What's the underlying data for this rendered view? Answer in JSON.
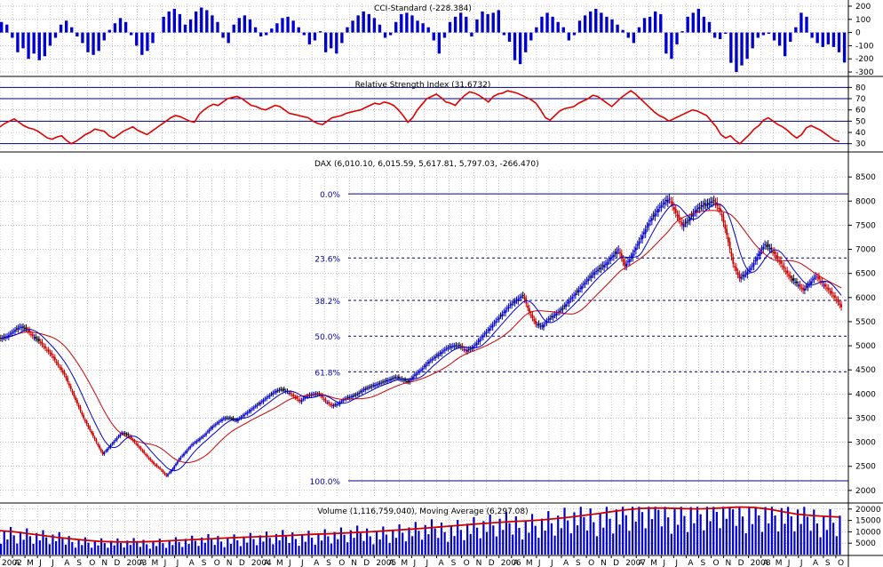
{
  "colors": {
    "price_up": "#0000cc",
    "price_down": "#cc0000",
    "ma_short": "#0000cc",
    "ma_long": "#cc0000",
    "indicator_line": "#e00000",
    "bars": "#0000cc",
    "grid": "#9a9a9a",
    "fib_line": "#000080"
  },
  "chart_data": [
    {
      "type": "bar",
      "panel": "cci",
      "title": "CCI-Standard (-228.384)",
      "y_ticks": [
        "200",
        "100",
        "0",
        "-100",
        "-200",
        "-300"
      ],
      "ylim": [
        -320,
        220
      ],
      "grid": true,
      "note_series": "approximate weekly CCI values",
      "values": [
        80,
        60,
        -40,
        -150,
        -120,
        -200,
        -160,
        -210,
        -180,
        -100,
        -40,
        60,
        90,
        40,
        -30,
        -80,
        -150,
        -170,
        -140,
        -60,
        20,
        70,
        110,
        80,
        -20,
        -100,
        -170,
        -140,
        -80,
        0,
        120,
        160,
        180,
        140,
        60,
        100,
        160,
        190,
        170,
        130,
        80,
        -40,
        -80,
        60,
        110,
        130,
        100,
        40,
        -30,
        -20,
        30,
        70,
        110,
        120,
        90,
        40,
        -20,
        -90,
        -60,
        10,
        -150,
        -120,
        -160,
        -80,
        40,
        90,
        130,
        160,
        140,
        110,
        60,
        -40,
        -20,
        80,
        140,
        150,
        130,
        90,
        70,
        40,
        -60,
        -160,
        -40,
        80,
        120,
        150,
        120,
        -30,
        100,
        160,
        140,
        150,
        170,
        -20,
        -70,
        -210,
        -240,
        -150,
        -60,
        40,
        120,
        150,
        120,
        80,
        40,
        -60,
        -20,
        90,
        130,
        160,
        180,
        150,
        120,
        100,
        60,
        20,
        -40,
        -80,
        40,
        110,
        120,
        160,
        140,
        -160,
        -200,
        -90,
        10,
        120,
        150,
        180,
        120,
        80,
        -40,
        -50,
        -10,
        -230,
        -300,
        -250,
        -200,
        -120,
        -40,
        -20,
        -10,
        -60,
        -100,
        -180,
        -70,
        40,
        150,
        120,
        -40,
        -80,
        -110,
        -90,
        -110,
        -150,
        -228
      ]
    },
    {
      "type": "line",
      "panel": "rsi",
      "title": "Relative Strength Index (31.6732)",
      "y_ticks": [
        "80",
        "70",
        "60",
        "50",
        "40",
        "30"
      ],
      "ylim": [
        25,
        85
      ],
      "hlines": [
        80,
        70,
        50,
        30
      ],
      "grid": true,
      "values": [
        45,
        48,
        50,
        52,
        49,
        46,
        44,
        43,
        41,
        38,
        35,
        34,
        36,
        37,
        33,
        30,
        32,
        35,
        38,
        40,
        43,
        42,
        41,
        37,
        35,
        38,
        41,
        43,
        45,
        42,
        40,
        38,
        41,
        44,
        47,
        50,
        53,
        55,
        54,
        52,
        50,
        49,
        56,
        60,
        63,
        65,
        64,
        67,
        70,
        71,
        72,
        70,
        67,
        64,
        63,
        61,
        60,
        62,
        64,
        63,
        60,
        57,
        56,
        55,
        54,
        53,
        50,
        48,
        47,
        50,
        53,
        54,
        55,
        57,
        58,
        59,
        60,
        62,
        64,
        66,
        65,
        67,
        66,
        64,
        60,
        55,
        49,
        53,
        60,
        65,
        70,
        72,
        74,
        71,
        67,
        66,
        64,
        69,
        73,
        76,
        75,
        73,
        70,
        67,
        72,
        74,
        75,
        77,
        76,
        75,
        73,
        71,
        69,
        66,
        60,
        53,
        51,
        55,
        59,
        61,
        62,
        63,
        66,
        68,
        70,
        73,
        72,
        69,
        66,
        63,
        67,
        71,
        74,
        77,
        74,
        70,
        66,
        62,
        58,
        55,
        53,
        50,
        52,
        54,
        56,
        58,
        60,
        59,
        57,
        55,
        50,
        45,
        38,
        35,
        37,
        33,
        30,
        34,
        38,
        43,
        46,
        51,
        53,
        50,
        47,
        45,
        42,
        38,
        35,
        38,
        44,
        46,
        44,
        42,
        39,
        36,
        33,
        32
      ]
    },
    {
      "type": "candlestick",
      "panel": "price",
      "title": "DAX (6,010.10, 6,015.59, 5,617.81, 5,797.03, -266.470)",
      "y_ticks": [
        "8500",
        "8000",
        "7500",
        "7000",
        "6500",
        "6000",
        "5500",
        "5000",
        "4500",
        "4000",
        "3500",
        "3000",
        "2500",
        "2000"
      ],
      "ylim": [
        1850,
        8650
      ],
      "grid": true,
      "x_tick_labels": [
        "2002",
        "A",
        "M",
        "J",
        "J",
        "A",
        "S",
        "O",
        "N",
        "D",
        "2003",
        "A",
        "M",
        "J",
        "J",
        "A",
        "S",
        "O",
        "N",
        "D",
        "2004",
        "A",
        "M",
        "J",
        "J",
        "A",
        "S",
        "O",
        "N",
        "D",
        "2005",
        "A",
        "M",
        "J",
        "J",
        "A",
        "S",
        "O",
        "N",
        "D",
        "2006",
        "A",
        "M",
        "J",
        "J",
        "A",
        "S",
        "O",
        "N",
        "D",
        "2007",
        "A",
        "M",
        "J",
        "J",
        "A",
        "S",
        "O",
        "N",
        "D",
        "2008",
        "A",
        "M",
        "J",
        "J",
        "A",
        "S",
        "O"
      ],
      "fibonacci": [
        {
          "label": "0.0%",
          "value": 8150,
          "style": "solid"
        },
        {
          "label": "23.6%",
          "value": 6820,
          "style": "dashed"
        },
        {
          "label": "38.2%",
          "value": 5940,
          "style": "dashed"
        },
        {
          "label": "50.0%",
          "value": 5200,
          "style": "dashed"
        },
        {
          "label": "61.8%",
          "value": 4460,
          "style": "dashed"
        },
        {
          "label": "100.0%",
          "value": 2200,
          "style": "solid"
        }
      ],
      "closes": [
        5150,
        5200,
        5300,
        5400,
        5350,
        5200,
        5100,
        4950,
        4800,
        4600,
        4400,
        4100,
        3800,
        3500,
        3250,
        3000,
        2750,
        2900,
        3050,
        3200,
        3150,
        3000,
        2850,
        2700,
        2550,
        2450,
        2300,
        2450,
        2650,
        2800,
        2950,
        3050,
        3150,
        3300,
        3400,
        3500,
        3500,
        3450,
        3550,
        3650,
        3750,
        3850,
        3950,
        4050,
        4100,
        4050,
        3950,
        3850,
        3950,
        4000,
        4000,
        3850,
        3750,
        3800,
        3900,
        3950,
        4000,
        4100,
        4150,
        4200,
        4250,
        4300,
        4350,
        4300,
        4250,
        4400,
        4500,
        4650,
        4750,
        4850,
        4950,
        5000,
        5000,
        4900,
        4950,
        5100,
        5250,
        5400,
        5550,
        5700,
        5850,
        5950,
        6050,
        5700,
        5450,
        5400,
        5550,
        5650,
        5750,
        5900,
        6050,
        6200,
        6350,
        6500,
        6600,
        6700,
        6850,
        7000,
        6650,
        6850,
        7100,
        7350,
        7600,
        7800,
        7950,
        8050,
        7750,
        7500,
        7600,
        7800,
        7900,
        7950,
        8000,
        7800,
        7300,
        6700,
        6400,
        6500,
        6650,
        6900,
        7100,
        7000,
        6800,
        6600,
        6400,
        6300,
        6150,
        6300,
        6450,
        6300,
        6150,
        6000,
        5797
      ],
      "legend": []
    },
    {
      "type": "bar",
      "panel": "volume",
      "title": "Volume (1,116,759,040), Moving Average (6,297.08)",
      "y_ticks": [
        "20000",
        "15000",
        "10000",
        "5000"
      ],
      "ylim": [
        0,
        21500
      ],
      "grid": true,
      "values_ma": [
        10500,
        10000,
        9200,
        8400,
        7600,
        6900,
        6300,
        5800,
        5600,
        5500,
        5600,
        5800,
        6100,
        6400,
        6700,
        7000,
        7300,
        7600,
        7800,
        8000,
        8300,
        8600,
        8900,
        9100,
        9400,
        9700,
        10000,
        10400,
        10800,
        11200,
        11700,
        12200,
        12700,
        13200,
        13700,
        14100,
        14500,
        14800,
        15200,
        15800,
        16400,
        17200,
        18000,
        18900,
        19700,
        20300,
        20500,
        20400,
        20200,
        20100,
        20300,
        20600,
        20900,
        20700,
        20000,
        18900,
        17800,
        17200,
        16800,
        16500
      ]
    }
  ]
}
